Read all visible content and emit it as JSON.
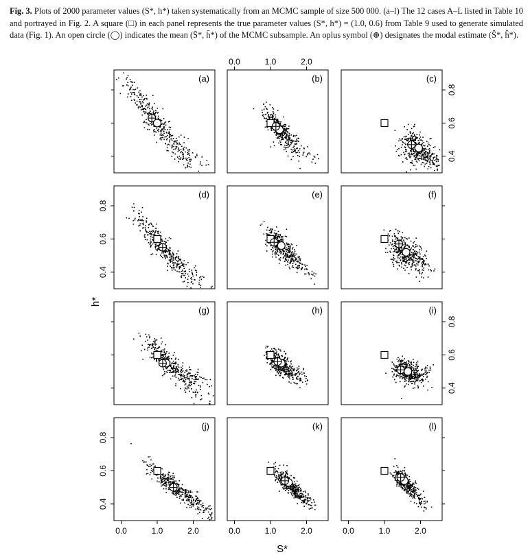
{
  "caption": {
    "label": "Fig. 3.",
    "text": "Plots of 2000 parameter values (S*, h*) taken systematically from an MCMC sample of size 500 000. (a–l) The 12 cases A–L listed in Table 10 and portrayed in Fig. 2. A square (□) in each panel represents the true parameter values (S*, h*) = (1.0, 0.6) from Table 9 used to generate simulated data (Fig. 1). An open circle (◯) indicates the mean (S̄*, h̄*) of the MCMC subsample. An oplus symbol (⊕) designates the modal estimate (Ŝ*, ĥ*)."
  },
  "chart_data": {
    "type": "scatter",
    "layout": "4x3 grid of panels",
    "xlabel": "S*",
    "ylabel": "h*",
    "xlim": [
      -0.2,
      2.6
    ],
    "ylim": [
      0.3,
      0.92
    ],
    "x_ticks": [
      "0.0",
      "1.0",
      "2.0"
    ],
    "y_ticks": [
      "0.4",
      "0.6",
      "0.8"
    ],
    "true_value": {
      "S": 1.0,
      "h": 0.6,
      "marker": "square"
    },
    "panels": [
      {
        "label": "(a)",
        "mean": [
          1.0,
          0.6
        ],
        "mode": [
          0.85,
          0.63
        ],
        "cloud_center": [
          0.95,
          0.61
        ],
        "slope": -0.28,
        "major_sd": 0.42,
        "minor_sd": 0.035,
        "tail_to": [
          2.4,
          0.34
        ]
      },
      {
        "label": "(b)",
        "mean": [
          1.25,
          0.56
        ],
        "mode": [
          1.15,
          0.58
        ],
        "cloud_center": [
          1.2,
          0.57
        ],
        "slope": -0.24,
        "major_sd": 0.2,
        "minor_sd": 0.035,
        "tail_to": [
          2.3,
          0.37
        ]
      },
      {
        "label": "(c)",
        "mean": [
          1.95,
          0.45
        ],
        "mode": [
          1.75,
          0.47
        ],
        "cloud_center": [
          1.85,
          0.45
        ],
        "slope": -0.15,
        "major_sd": 0.22,
        "minor_sd": 0.045,
        "tail_to": [
          2.4,
          0.38
        ]
      },
      {
        "label": "(d)",
        "mean": [
          1.15,
          0.55
        ],
        "mode": [
          1.15,
          0.55
        ],
        "cloud_center": [
          1.1,
          0.56
        ],
        "slope": -0.25,
        "major_sd": 0.4,
        "minor_sd": 0.035,
        "tail_to": [
          2.4,
          0.33
        ]
      },
      {
        "label": "(e)",
        "mean": [
          1.3,
          0.56
        ],
        "mode": [
          1.1,
          0.58
        ],
        "cloud_center": [
          1.25,
          0.56
        ],
        "slope": -0.2,
        "major_sd": 0.2,
        "minor_sd": 0.035,
        "tail_to": [
          2.2,
          0.38
        ]
      },
      {
        "label": "(f)",
        "mean": [
          1.6,
          0.52
        ],
        "mode": [
          1.4,
          0.57
        ],
        "cloud_center": [
          1.55,
          0.52
        ],
        "slope": -0.13,
        "major_sd": 0.2,
        "minor_sd": 0.05,
        "tail_to": [
          2.3,
          0.44
        ]
      },
      {
        "label": "(g)",
        "mean": [
          1.25,
          0.55
        ],
        "mode": [
          1.15,
          0.55
        ],
        "cloud_center": [
          1.3,
          0.55
        ],
        "slope": -0.19,
        "major_sd": 0.35,
        "minor_sd": 0.035,
        "tail_to": [
          2.5,
          0.43
        ]
      },
      {
        "label": "(h)",
        "mean": [
          1.3,
          0.55
        ],
        "mode": [
          1.2,
          0.56
        ],
        "cloud_center": [
          1.25,
          0.55
        ],
        "slope": -0.18,
        "major_sd": 0.17,
        "minor_sd": 0.03,
        "tail_to": [
          2.0,
          0.46
        ]
      },
      {
        "label": "(i)",
        "mean": [
          1.65,
          0.5
        ],
        "mode": [
          1.45,
          0.51
        ],
        "cloud_center": [
          1.6,
          0.5
        ],
        "slope": -0.08,
        "major_sd": 0.17,
        "minor_sd": 0.035,
        "tail_to": [
          2.2,
          0.5
        ]
      },
      {
        "label": "(j)",
        "mean": [
          1.5,
          0.5
        ],
        "mode": [
          1.45,
          0.5
        ],
        "cloud_center": [
          1.5,
          0.5
        ],
        "slope": -0.17,
        "major_sd": 0.38,
        "minor_sd": 0.025,
        "tail_to": [
          2.5,
          0.36
        ]
      },
      {
        "label": "(k)",
        "mean": [
          1.5,
          0.53
        ],
        "mode": [
          1.4,
          0.54
        ],
        "cloud_center": [
          1.5,
          0.52
        ],
        "slope": -0.2,
        "major_sd": 0.2,
        "minor_sd": 0.025,
        "tail_to": [
          2.1,
          0.43
        ]
      },
      {
        "label": "(l)",
        "mean": [
          1.55,
          0.54
        ],
        "mode": [
          1.45,
          0.56
        ],
        "cloud_center": [
          1.55,
          0.53
        ],
        "slope": -0.21,
        "major_sd": 0.14,
        "minor_sd": 0.025,
        "tail_to": [
          2.2,
          0.38
        ]
      }
    ]
  }
}
